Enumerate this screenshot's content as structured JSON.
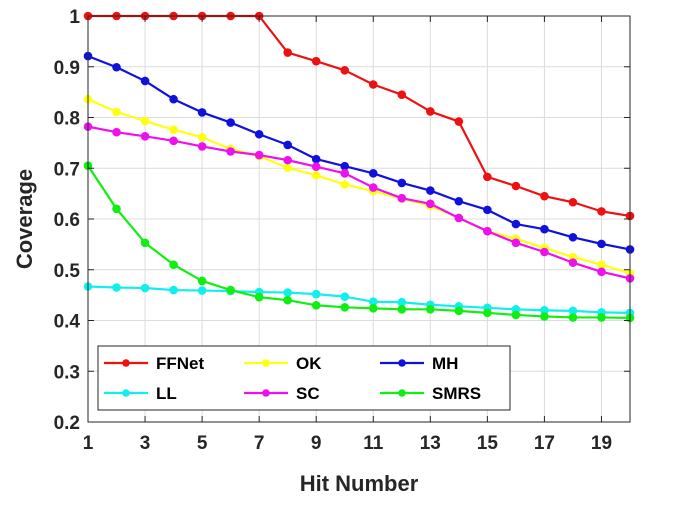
{
  "chart_data": {
    "type": "line",
    "xlabel": "Hit Number",
    "ylabel": "Coverage",
    "xlim": [
      1,
      20
    ],
    "ylim": [
      0.2,
      1
    ],
    "xticks": [
      1,
      3,
      5,
      7,
      9,
      11,
      13,
      15,
      17,
      19
    ],
    "yticks": [
      0.2,
      0.3,
      0.4,
      0.5,
      0.6,
      0.7,
      0.8,
      0.9,
      1
    ],
    "ytick_labels": [
      "0.2",
      "0.3",
      "0.4",
      "0.5",
      "0.6",
      "0.7",
      "0.8",
      "0.9",
      "1"
    ],
    "grid": true,
    "legend_position": "bottom-left",
    "x": [
      1,
      2,
      3,
      4,
      5,
      6,
      7,
      8,
      9,
      10,
      11,
      12,
      13,
      14,
      15,
      16,
      17,
      18,
      19,
      20
    ],
    "series": [
      {
        "name": "FFNet",
        "color": "#ee1111",
        "values": [
          1.0,
          1.0,
          1.0,
          1.0,
          1.0,
          1.0,
          1.0,
          0.928,
          0.911,
          0.893,
          0.865,
          0.845,
          0.812,
          0.792,
          0.683,
          0.665,
          0.645,
          0.633,
          0.615,
          0.606
        ]
      },
      {
        "name": "OK",
        "color": "#ffff11",
        "values": [
          0.836,
          0.811,
          0.793,
          0.776,
          0.761,
          0.738,
          0.724,
          0.701,
          0.686,
          0.668,
          0.655,
          0.64,
          0.626,
          0.602,
          0.576,
          0.561,
          0.543,
          0.525,
          0.51,
          0.493
        ]
      },
      {
        "name": "MH",
        "color": "#1111dd",
        "values": [
          0.921,
          0.899,
          0.872,
          0.836,
          0.81,
          0.79,
          0.767,
          0.746,
          0.718,
          0.704,
          0.69,
          0.671,
          0.656,
          0.635,
          0.618,
          0.59,
          0.58,
          0.564,
          0.551,
          0.54
        ]
      },
      {
        "name": "LL",
        "color": "#11eeee",
        "values": [
          0.467,
          0.465,
          0.464,
          0.46,
          0.459,
          0.458,
          0.456,
          0.455,
          0.452,
          0.447,
          0.437,
          0.436,
          0.431,
          0.428,
          0.425,
          0.422,
          0.42,
          0.419,
          0.416,
          0.415
        ]
      },
      {
        "name": "SC",
        "color": "#ee11ee",
        "values": [
          0.782,
          0.771,
          0.763,
          0.754,
          0.743,
          0.733,
          0.726,
          0.716,
          0.703,
          0.69,
          0.662,
          0.641,
          0.63,
          0.602,
          0.576,
          0.553,
          0.535,
          0.514,
          0.496,
          0.483
        ]
      },
      {
        "name": "SMRS",
        "color": "#11ee11",
        "values": [
          0.705,
          0.62,
          0.553,
          0.51,
          0.478,
          0.46,
          0.446,
          0.44,
          0.43,
          0.426,
          0.424,
          0.422,
          0.422,
          0.419,
          0.415,
          0.411,
          0.408,
          0.406,
          0.406,
          0.405
        ]
      }
    ]
  }
}
